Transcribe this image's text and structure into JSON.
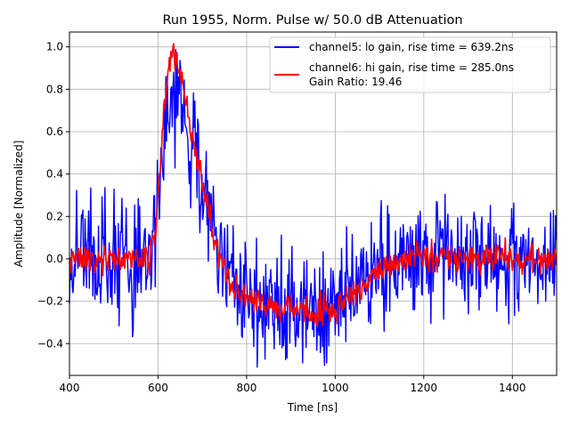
{
  "chart_data": {
    "type": "line",
    "title": "Run 1955, Norm. Pulse w/ 50.0 dB Attenuation",
    "xlabel": "Time [ns]",
    "ylabel": "Amplitude [Normalized]",
    "xlim": [
      400,
      1500
    ],
    "ylim": [
      -0.55,
      1.07
    ],
    "xticks": [
      400,
      600,
      800,
      1000,
      1200,
      1400
    ],
    "yticks": [
      -0.4,
      -0.2,
      0.0,
      0.2,
      0.4,
      0.6,
      0.8,
      1.0
    ],
    "xtick_labels": [
      "400",
      "600",
      "800",
      "1000",
      "1200",
      "1400"
    ],
    "ytick_labels": [
      "−0.4",
      "−0.2",
      "0.0",
      "0.2",
      "0.4",
      "0.6",
      "0.8",
      "1.0"
    ],
    "grid": true,
    "legend_placement": "top-right",
    "series": [
      {
        "name": "channel5: lo gain, rise time = 639.2ns",
        "color": "#0000ff",
        "noise": 0.13,
        "envelope": [
          [
            400,
            0
          ],
          [
            580,
            0
          ],
          [
            595,
            0.2
          ],
          [
            615,
            0.6
          ],
          [
            630,
            0.8
          ],
          [
            650,
            0.75
          ],
          [
            680,
            0.5
          ],
          [
            700,
            0.3
          ],
          [
            740,
            0
          ],
          [
            780,
            -0.15
          ],
          [
            850,
            -0.22
          ],
          [
            950,
            -0.25
          ],
          [
            1000,
            -0.22
          ],
          [
            1060,
            -0.1
          ],
          [
            1120,
            0
          ],
          [
            1500,
            0
          ]
        ]
      },
      {
        "name": "channel6: hi gain, rise time = 285.0ns",
        "name2": "Gain Ratio: 19.46",
        "color": "#ff0000",
        "noise": 0.035,
        "envelope": [
          [
            400,
            0
          ],
          [
            580,
            0
          ],
          [
            595,
            0.15
          ],
          [
            612,
            0.65
          ],
          [
            630,
            1.0
          ],
          [
            645,
            0.92
          ],
          [
            670,
            0.65
          ],
          [
            700,
            0.35
          ],
          [
            730,
            0.08
          ],
          [
            760,
            -0.1
          ],
          [
            800,
            -0.2
          ],
          [
            880,
            -0.24
          ],
          [
            950,
            -0.25
          ],
          [
            1000,
            -0.23
          ],
          [
            1050,
            -0.15
          ],
          [
            1100,
            -0.05
          ],
          [
            1150,
            0
          ],
          [
            1500,
            0
          ]
        ]
      }
    ]
  }
}
